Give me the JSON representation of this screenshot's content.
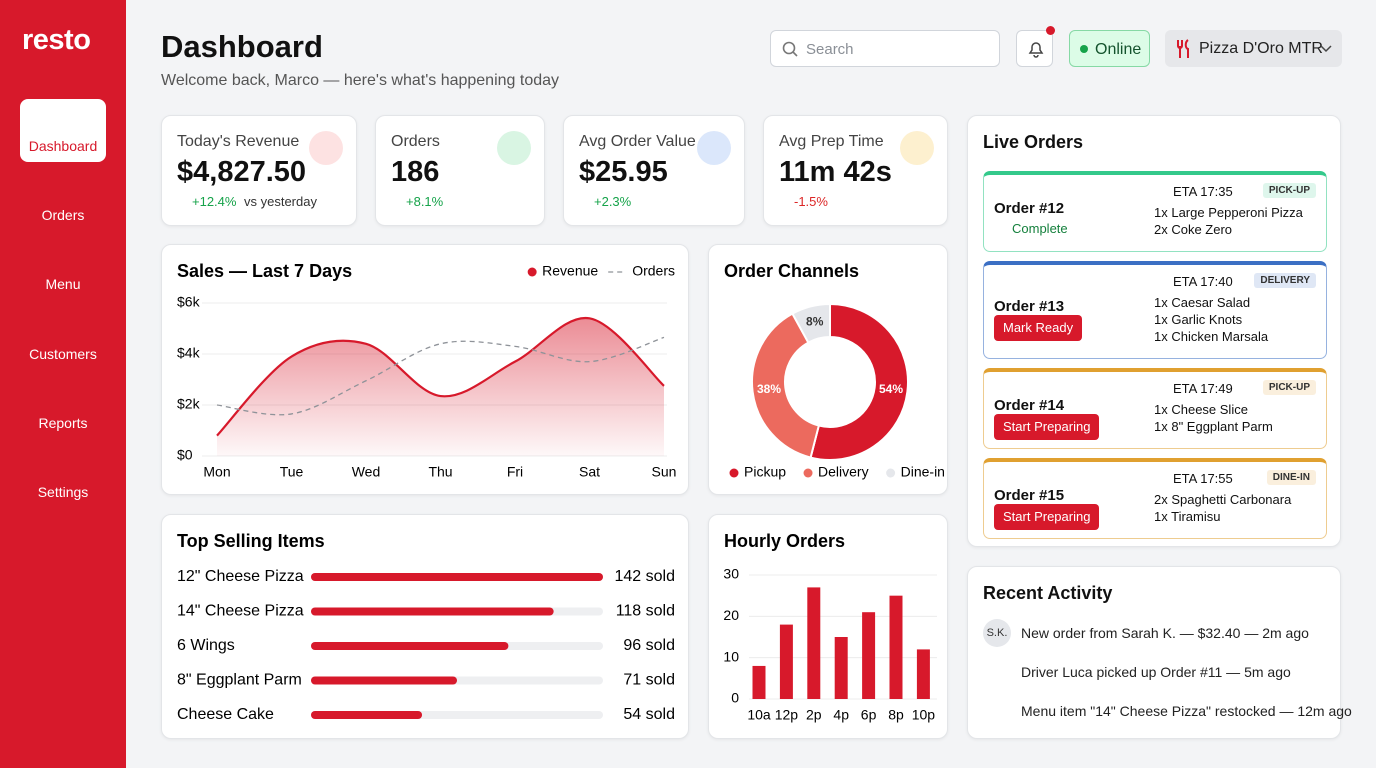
{
  "sidebar": {
    "logo": "resto",
    "nav": [
      "Dashboard",
      "Orders",
      "Menu",
      "Customers",
      "Reports",
      "Settings"
    ]
  },
  "header": {
    "title": "Dashboard",
    "subtitle": "Welcome back, Marco — here's what's happening today",
    "search_placeholder": "Search",
    "status": "Online",
    "restaurant": "Pizza D'Oro MTR"
  },
  "kpis": [
    {
      "label": "Today's Revenue",
      "value": "$4,827.50",
      "change": "+12.4%",
      "note": "vs yesterday"
    },
    {
      "label": "Orders",
      "value": "186",
      "change": "+8.1%"
    },
    {
      "label": "Avg Order Value",
      "value": "$25.95",
      "change": "+2.3%"
    },
    {
      "label": "Avg Prep Time",
      "value": "11m 42s",
      "change": "-1.5%"
    }
  ],
  "chart_data": [
    {
      "type": "line",
      "title": "Sales — Last 7 Days",
      "categories": [
        "Mon",
        "Tue",
        "Wed",
        "Thu",
        "Fri",
        "Sat",
        "Sun"
      ],
      "series": [
        {
          "name": "Revenue",
          "color": "#d7192b",
          "values": [
            800,
            3900,
            4400,
            2350,
            3700,
            5400,
            2750
          ],
          "area": true
        },
        {
          "name": "Orders",
          "color": "#8f9399",
          "values": [
            2000,
            1650,
            2950,
            4400,
            4300,
            3700,
            4650
          ],
          "dashed": true
        }
      ],
      "ylim": [
        0,
        6000
      ],
      "yticks": [
        {
          "value": 0,
          "label": "$0"
        },
        {
          "value": 2000,
          "label": "$2k"
        },
        {
          "value": 4000,
          "label": "$4k"
        },
        {
          "value": 6000,
          "label": "$6k"
        }
      ],
      "grid": true
    },
    {
      "type": "pie",
      "title": "Order Channels",
      "categories": [
        "Pickup",
        "Delivery",
        "Dine-in"
      ],
      "values": [
        54,
        38,
        8
      ],
      "value_labels": [
        "54%",
        "38%",
        "8%"
      ],
      "colors": [
        "#d7192b",
        "#ec6a5e",
        "#e5e7eb"
      ],
      "donut": true
    },
    {
      "type": "hbar",
      "title": "Top Selling Items",
      "categories": [
        "12\" Cheese Pizza",
        "14\" Cheese Pizza",
        "6 Wings",
        "8\" Eggplant Parm",
        "Cheese Cake"
      ],
      "values": [
        142,
        118,
        96,
        71,
        54
      ],
      "value_labels": [
        "142 sold",
        "118 sold",
        "96 sold",
        "71 sold",
        "54 sold"
      ],
      "xlim": [
        0,
        142
      ],
      "color": "#d7192b"
    },
    {
      "type": "bar",
      "title": "Hourly Orders",
      "categories": [
        "10a",
        "12p",
        "2p",
        "4p",
        "6p",
        "8p",
        "10p"
      ],
      "values": [
        8,
        18,
        27,
        15,
        21,
        25,
        12
      ],
      "ylim": [
        0,
        30
      ],
      "yticks": [
        0,
        10,
        20,
        30
      ],
      "color": "#d7192b",
      "grid": true
    }
  ],
  "live_orders": {
    "title": "Live Orders",
    "orders": [
      {
        "id": "Order #12",
        "eta": "ETA 17:35",
        "type": "PICK-UP",
        "status": "Complete",
        "items": [
          "1x Large Pepperoni Pizza",
          "2x Coke Zero"
        ],
        "color": "#34c98b"
      },
      {
        "id": "Order #13",
        "eta": "ETA 17:40",
        "type": "DELIVERY",
        "action": "Mark Ready",
        "items": [
          "1x Caesar Salad",
          "1x Garlic Knots",
          "1x Chicken Marsala"
        ],
        "color": "#3b6fc4"
      },
      {
        "id": "Order #14",
        "eta": "ETA 17:49",
        "type": "PICK-UP",
        "action": "Start Preparing",
        "items": [
          "1x Cheese Slice",
          "1x 8\" Eggplant Parm"
        ],
        "color": "#e0a030"
      },
      {
        "id": "Order #15",
        "eta": "ETA 17:55",
        "type": "DINE-IN",
        "action": "Start Preparing",
        "items": [
          "2x Spaghetti Carbonara",
          "1x Tiramisu"
        ],
        "color": "#e0a030"
      }
    ]
  },
  "recent_activity": {
    "title": "Recent Activity",
    "items": [
      {
        "avatar": "S.K.",
        "text": "New order from Sarah K. — $32.40 — 2m ago"
      },
      {
        "text": "Driver Luca picked up Order #11 — 5m ago"
      },
      {
        "text": "Menu item \"14\" Cheese Pizza\" restocked — 12m ago"
      }
    ]
  }
}
